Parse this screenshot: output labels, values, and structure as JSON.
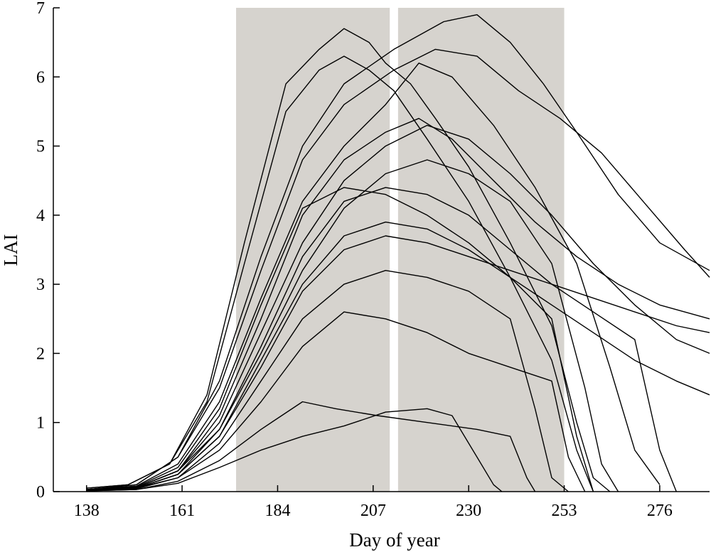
{
  "chart_data": {
    "type": "line",
    "xlabel": "Day of year",
    "ylabel": "LAI",
    "xlim": [
      130,
      288
    ],
    "ylim": [
      0,
      7
    ],
    "xticks": [
      138,
      161,
      184,
      207,
      230,
      253,
      276
    ],
    "yticks": [
      0,
      1,
      2,
      3,
      4,
      5,
      6,
      7
    ],
    "grid": false,
    "legend": "none",
    "line_color": "#000000",
    "shade_color": "#d6d3ce",
    "shaded_periods": [
      {
        "start": 174,
        "end": 211
      },
      {
        "start": 213,
        "end": 253
      }
    ],
    "series": [
      {
        "values": [
          [
            138,
            0.05
          ],
          [
            148,
            0.1
          ],
          [
            158,
            0.4
          ],
          [
            167,
            1.4
          ],
          [
            176,
            3.6
          ],
          [
            186,
            5.9
          ],
          [
            194,
            6.4
          ],
          [
            200,
            6.7
          ],
          [
            206,
            6.5
          ],
          [
            210,
            6.2
          ],
          [
            216,
            5.9
          ],
          [
            222,
            5.4
          ],
          [
            230,
            4.7
          ],
          [
            240,
            3.6
          ],
          [
            250,
            2.4
          ],
          [
            256,
            1.0
          ],
          [
            260,
            0.2
          ],
          [
            264,
            0.0
          ]
        ]
      },
      {
        "values": [
          [
            138,
            0.05
          ],
          [
            148,
            0.1
          ],
          [
            158,
            0.4
          ],
          [
            167,
            1.3
          ],
          [
            176,
            3.3
          ],
          [
            186,
            5.5
          ],
          [
            194,
            6.1
          ],
          [
            200,
            6.3
          ],
          [
            206,
            6.1
          ],
          [
            212,
            5.8
          ],
          [
            220,
            5.1
          ],
          [
            230,
            4.2
          ],
          [
            240,
            3.1
          ],
          [
            250,
            1.9
          ],
          [
            256,
            0.6
          ],
          [
            260,
            0.0
          ]
        ]
      },
      {
        "values": [
          [
            138,
            0.03
          ],
          [
            150,
            0.1
          ],
          [
            160,
            0.5
          ],
          [
            170,
            1.6
          ],
          [
            180,
            3.4
          ],
          [
            190,
            5.0
          ],
          [
            200,
            5.9
          ],
          [
            212,
            6.4
          ],
          [
            224,
            6.8
          ],
          [
            232,
            6.9
          ],
          [
            240,
            6.5
          ],
          [
            248,
            5.9
          ],
          [
            256,
            5.2
          ],
          [
            266,
            4.3
          ],
          [
            276,
            3.6
          ],
          [
            288,
            3.2
          ]
        ]
      },
      {
        "values": [
          [
            138,
            0.03
          ],
          [
            150,
            0.1
          ],
          [
            160,
            0.5
          ],
          [
            170,
            1.5
          ],
          [
            180,
            3.2
          ],
          [
            190,
            4.8
          ],
          [
            200,
            5.6
          ],
          [
            212,
            6.1
          ],
          [
            222,
            6.4
          ],
          [
            232,
            6.3
          ],
          [
            242,
            5.8
          ],
          [
            252,
            5.4
          ],
          [
            262,
            4.9
          ],
          [
            272,
            4.2
          ],
          [
            282,
            3.5
          ],
          [
            288,
            3.1
          ]
        ]
      },
      {
        "values": [
          [
            138,
            0.03
          ],
          [
            150,
            0.08
          ],
          [
            160,
            0.4
          ],
          [
            170,
            1.3
          ],
          [
            180,
            2.8
          ],
          [
            190,
            4.2
          ],
          [
            200,
            5.0
          ],
          [
            210,
            5.6
          ],
          [
            218,
            6.2
          ],
          [
            226,
            6.0
          ],
          [
            236,
            5.3
          ],
          [
            246,
            4.4
          ],
          [
            256,
            3.3
          ],
          [
            264,
            1.8
          ],
          [
            270,
            0.6
          ],
          [
            276,
            0.1
          ]
        ]
      },
      {
        "values": [
          [
            138,
            0.02
          ],
          [
            150,
            0.06
          ],
          [
            160,
            0.3
          ],
          [
            170,
            1.0
          ],
          [
            180,
            2.3
          ],
          [
            190,
            3.6
          ],
          [
            200,
            4.5
          ],
          [
            210,
            5.0
          ],
          [
            220,
            5.3
          ],
          [
            230,
            5.1
          ],
          [
            240,
            4.6
          ],
          [
            250,
            4.0
          ],
          [
            260,
            3.3
          ],
          [
            270,
            2.7
          ],
          [
            280,
            2.2
          ],
          [
            288,
            2.0
          ]
        ]
      },
      {
        "values": [
          [
            138,
            0.02
          ],
          [
            150,
            0.06
          ],
          [
            160,
            0.3
          ],
          [
            170,
            0.9
          ],
          [
            180,
            2.0
          ],
          [
            190,
            3.2
          ],
          [
            200,
            4.1
          ],
          [
            210,
            4.6
          ],
          [
            220,
            4.8
          ],
          [
            230,
            4.6
          ],
          [
            240,
            4.2
          ],
          [
            250,
            3.3
          ],
          [
            258,
            1.5
          ],
          [
            262,
            0.4
          ],
          [
            266,
            0.0
          ]
        ]
      },
      {
        "values": [
          [
            138,
            0.02
          ],
          [
            150,
            0.05
          ],
          [
            160,
            0.25
          ],
          [
            170,
            0.8
          ],
          [
            180,
            1.9
          ],
          [
            190,
            3.0
          ],
          [
            200,
            3.7
          ],
          [
            210,
            3.9
          ],
          [
            220,
            3.8
          ],
          [
            230,
            3.5
          ],
          [
            240,
            3.1
          ],
          [
            250,
            2.7
          ],
          [
            260,
            2.3
          ],
          [
            270,
            1.9
          ],
          [
            280,
            1.6
          ],
          [
            288,
            1.4
          ]
        ]
      },
      {
        "values": [
          [
            138,
            0.02
          ],
          [
            150,
            0.05
          ],
          [
            160,
            0.2
          ],
          [
            170,
            0.7
          ],
          [
            180,
            1.6
          ],
          [
            190,
            2.5
          ],
          [
            200,
            3.0
          ],
          [
            210,
            3.2
          ],
          [
            220,
            3.1
          ],
          [
            230,
            2.9
          ],
          [
            240,
            2.5
          ],
          [
            246,
            1.2
          ],
          [
            250,
            0.2
          ],
          [
            254,
            0.0
          ]
        ]
      },
      {
        "values": [
          [
            138,
            0.01
          ],
          [
            150,
            0.04
          ],
          [
            160,
            0.2
          ],
          [
            170,
            0.6
          ],
          [
            180,
            1.3
          ],
          [
            190,
            2.1
          ],
          [
            200,
            2.6
          ],
          [
            210,
            2.5
          ],
          [
            220,
            2.3
          ],
          [
            230,
            2.0
          ],
          [
            240,
            1.8
          ],
          [
            250,
            1.6
          ],
          [
            254,
            0.5
          ],
          [
            258,
            0.0
          ]
        ]
      },
      {
        "values": [
          [
            138,
            0.01
          ],
          [
            150,
            0.03
          ],
          [
            160,
            0.15
          ],
          [
            170,
            0.45
          ],
          [
            180,
            0.9
          ],
          [
            190,
            1.3
          ],
          [
            198,
            1.2
          ],
          [
            208,
            1.1
          ],
          [
            220,
            1.0
          ],
          [
            232,
            0.9
          ],
          [
            240,
            0.8
          ],
          [
            244,
            0.2
          ],
          [
            246,
            0.0
          ]
        ]
      },
      {
        "values": [
          [
            138,
            0.01
          ],
          [
            150,
            0.03
          ],
          [
            160,
            0.12
          ],
          [
            170,
            0.35
          ],
          [
            180,
            0.6
          ],
          [
            190,
            0.8
          ],
          [
            200,
            0.95
          ],
          [
            210,
            1.15
          ],
          [
            220,
            1.2
          ],
          [
            226,
            1.1
          ],
          [
            232,
            0.5
          ],
          [
            236,
            0.1
          ],
          [
            238,
            0.0
          ]
        ]
      },
      {
        "values": [
          [
            138,
            0.02
          ],
          [
            150,
            0.06
          ],
          [
            160,
            0.3
          ],
          [
            170,
            1.1
          ],
          [
            180,
            2.5
          ],
          [
            190,
            4.0
          ],
          [
            200,
            4.8
          ],
          [
            210,
            5.2
          ],
          [
            218,
            5.4
          ],
          [
            226,
            5.1
          ],
          [
            236,
            4.5
          ],
          [
            246,
            3.9
          ],
          [
            256,
            3.4
          ],
          [
            266,
            3.0
          ],
          [
            276,
            2.7
          ],
          [
            288,
            2.5
          ]
        ]
      },
      {
        "values": [
          [
            138,
            0.02
          ],
          [
            150,
            0.07
          ],
          [
            160,
            0.35
          ],
          [
            170,
            1.2
          ],
          [
            180,
            2.7
          ],
          [
            190,
            4.1
          ],
          [
            200,
            4.4
          ],
          [
            210,
            4.3
          ],
          [
            220,
            4.0
          ],
          [
            230,
            3.6
          ],
          [
            240,
            3.1
          ],
          [
            250,
            2.5
          ],
          [
            256,
            0.8
          ],
          [
            260,
            0.0
          ]
        ]
      },
      {
        "values": [
          [
            138,
            0.02
          ],
          [
            150,
            0.05
          ],
          [
            160,
            0.25
          ],
          [
            170,
            0.8
          ],
          [
            180,
            1.8
          ],
          [
            190,
            2.9
          ],
          [
            200,
            3.5
          ],
          [
            210,
            3.7
          ],
          [
            220,
            3.6
          ],
          [
            230,
            3.4
          ],
          [
            240,
            3.2
          ],
          [
            250,
            3.0
          ],
          [
            260,
            2.8
          ],
          [
            270,
            2.6
          ],
          [
            280,
            2.4
          ],
          [
            288,
            2.3
          ]
        ]
      },
      {
        "values": [
          [
            138,
            0.02
          ],
          [
            150,
            0.05
          ],
          [
            160,
            0.25
          ],
          [
            170,
            0.9
          ],
          [
            180,
            2.1
          ],
          [
            190,
            3.4
          ],
          [
            200,
            4.2
          ],
          [
            210,
            4.4
          ],
          [
            220,
            4.3
          ],
          [
            230,
            4.0
          ],
          [
            240,
            3.5
          ],
          [
            250,
            3.0
          ],
          [
            260,
            2.6
          ],
          [
            270,
            2.2
          ],
          [
            276,
            0.6
          ],
          [
            280,
            0.0
          ]
        ]
      }
    ]
  }
}
